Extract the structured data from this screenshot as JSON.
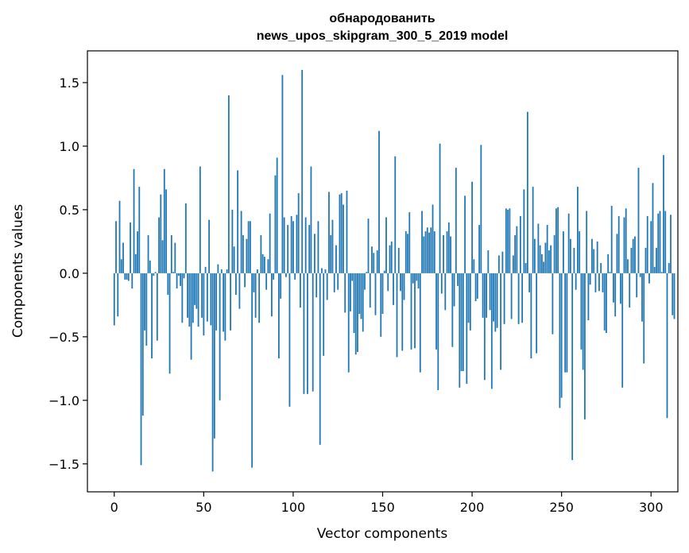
{
  "chart_data": {
    "type": "bar",
    "title_line1": "обнародованить",
    "title_line2": "news_upos_skipgram_300_5_2019 model",
    "xlabel": "Vector components",
    "ylabel": "Components values",
    "xlim": [
      -15,
      315
    ],
    "ylim": [
      -1.72,
      1.75
    ],
    "x_ticks": [
      0,
      50,
      100,
      150,
      200,
      250,
      300
    ],
    "x_tick_labels": [
      "0",
      "50",
      "100",
      "150",
      "200",
      "250",
      "300"
    ],
    "y_ticks": [
      -1.5,
      -1.0,
      -0.5,
      0.0,
      0.5,
      1.0,
      1.5
    ],
    "y_tick_labels": [
      "−1.5",
      "−1.0",
      "−0.5",
      "0.0",
      "0.5",
      "1.0",
      "1.5"
    ],
    "bar_color": "#1f77b4",
    "grid": false,
    "values": [
      -0.41,
      0.41,
      -0.34,
      0.57,
      0.11,
      0.24,
      -0.05,
      -0.05,
      -0.06,
      0.4,
      -0.12,
      0.82,
      0.15,
      0.33,
      0.68,
      -1.51,
      -1.12,
      -0.45,
      -0.57,
      0.3,
      0.1,
      -0.67,
      -0.02,
      0.01,
      -0.53,
      0.44,
      0.62,
      0.26,
      0.82,
      0.66,
      -0.17,
      -0.79,
      0.3,
      0.01,
      0.24,
      -0.12,
      -0.02,
      -0.1,
      -0.39,
      -0.04,
      0.55,
      -0.35,
      -0.42,
      -0.68,
      -0.39,
      -0.25,
      -0.28,
      -0.42,
      0.84,
      -0.35,
      -0.49,
      0.05,
      -0.38,
      0.42,
      -0.41,
      -1.56,
      -1.3,
      -0.45,
      0.07,
      -1.0,
      0.03,
      -0.46,
      -0.53,
      0.03,
      1.4,
      -0.45,
      0.5,
      0.21,
      -0.17,
      0.81,
      -0.28,
      0.49,
      0.3,
      -0.11,
      0.27,
      0.41,
      0.41,
      -1.53,
      -0.15,
      -0.35,
      0.03,
      -0.39,
      0.3,
      0.15,
      0.13,
      -0.13,
      0.11,
      0.47,
      -0.34,
      -0.05,
      0.77,
      0.91,
      -0.67,
      -0.2,
      1.56,
      0.44,
      -0.03,
      0.38,
      -1.05,
      0.45,
      0.41,
      -0.05,
      0.46,
      0.63,
      -0.27,
      1.6,
      -0.95,
      0.44,
      -0.95,
      0.38,
      0.84,
      -0.93,
      0.31,
      -0.19,
      0.41,
      -1.35,
      0.04,
      -0.65,
      0.03,
      -0.21,
      0.64,
      0.3,
      0.42,
      -0.15,
      0.22,
      -0.13,
      0.62,
      0.63,
      0.54,
      -0.31,
      0.65,
      -0.78,
      -0.3,
      -0.06,
      -0.47,
      -0.64,
      -0.62,
      -0.32,
      -0.36,
      -0.46,
      -0.13,
      0.01,
      0.43,
      -0.27,
      0.21,
      0.16,
      -0.33,
      0.18,
      1.12,
      -0.5,
      -0.32,
      0.02,
      0.44,
      -0.14,
      0.22,
      0.25,
      -0.25,
      0.92,
      -0.66,
      0.2,
      -0.14,
      -0.61,
      -0.21,
      0.33,
      0.31,
      0.48,
      -0.6,
      -0.08,
      -0.59,
      -0.06,
      -0.12,
      -0.78,
      0.49,
      0.29,
      0.33,
      0.36,
      0.32,
      0.36,
      0.54,
      0.33,
      -0.6,
      -0.92,
      1.02,
      -0.16,
      0.3,
      -0.29,
      0.33,
      0.4,
      0.29,
      -0.58,
      -0.26,
      0.83,
      -0.1,
      -0.9,
      -0.77,
      -0.77,
      0.61,
      -0.87,
      -0.39,
      -0.45,
      0.72,
      0.11,
      -0.22,
      -0.2,
      0.38,
      1.01,
      -0.35,
      -0.84,
      -0.35,
      0.18,
      -0.29,
      -0.91,
      -0.38,
      -0.46,
      -0.43,
      0.14,
      -0.76,
      0.17,
      -0.4,
      0.51,
      0.5,
      0.51,
      -0.36,
      0.14,
      0.3,
      0.37,
      -0.4,
      0.45,
      -0.39,
      0.66,
      0.08,
      1.27,
      -0.15,
      -0.67,
      0.68,
      0.27,
      -0.63,
      0.39,
      0.22,
      0.15,
      0.09,
      0.24,
      0.38,
      0.18,
      0.22,
      -0.48,
      0.3,
      0.51,
      0.52,
      -1.06,
      -0.98,
      0.33,
      -0.78,
      -0.78,
      0.47,
      0.27,
      -1.47,
      0.2,
      -0.13,
      0.68,
      0.33,
      -0.6,
      -0.76,
      -1.15,
      0.49,
      -0.37,
      -0.09,
      0.27,
      0.19,
      -0.15,
      0.25,
      -0.14,
      0.08,
      -0.15,
      -0.45,
      -0.47,
      0.15,
      0.01,
      0.53,
      -0.23,
      -0.34,
      0.31,
      0.45,
      -0.24,
      -0.9,
      0.44,
      0.51,
      0.11,
      -0.27,
      0.2,
      0.27,
      0.29,
      -0.19,
      0.83,
      -0.03,
      -0.38,
      -0.71,
      0.2,
      0.45,
      -0.08,
      0.41,
      0.71,
      0.05,
      0.2,
      0.47,
      0.49,
      0.01,
      0.93,
      0.49,
      -1.14,
      0.08,
      0.46,
      -0.33,
      -0.36
    ]
  }
}
